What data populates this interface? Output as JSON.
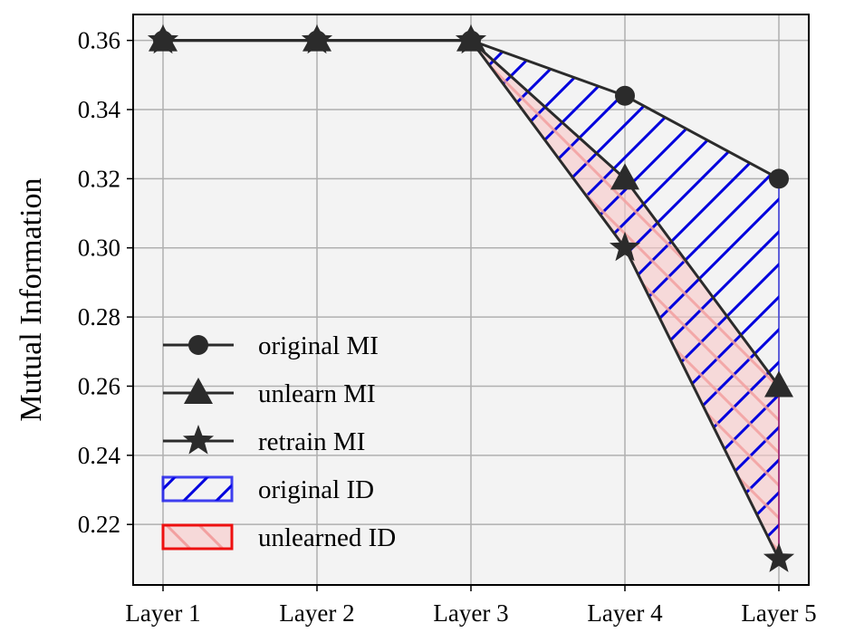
{
  "chart_data": {
    "type": "line",
    "title": "",
    "xlabel": "",
    "ylabel": "Mutual Information",
    "categories": [
      "Layer 1",
      "Layer 2",
      "Layer 3",
      "Layer 4",
      "Layer 5"
    ],
    "ylim": [
      0.2025,
      0.3675
    ],
    "yticks": [
      0.22,
      0.24,
      0.26,
      0.28,
      0.3,
      0.32,
      0.34,
      0.36
    ],
    "yticks_labels": [
      "0.22",
      "0.24",
      "0.26",
      "0.28",
      "0.30",
      "0.32",
      "0.34",
      "0.36"
    ],
    "grid": true,
    "legend_position": "lower-left",
    "series": [
      {
        "name": "original MI",
        "marker": "circle",
        "color": "#2b2b2b",
        "values": [
          0.36,
          0.36,
          0.36,
          0.344,
          0.32
        ]
      },
      {
        "name": "unlearn MI",
        "marker": "triangle",
        "color": "#2b2b2b",
        "values": [
          0.36,
          0.36,
          0.36,
          0.32,
          0.26
        ]
      },
      {
        "name": "retrain MI",
        "marker": "star",
        "color": "#2b2b2b",
        "values": [
          0.36,
          0.36,
          0.36,
          0.3,
          0.21
        ]
      }
    ],
    "fill_regions": [
      {
        "name": "original ID",
        "between": [
          "original MI",
          "retrain MI"
        ],
        "edge_color": "#1010ee",
        "hatch": "diagonal-forward"
      },
      {
        "name": "unlearned ID",
        "between": [
          "unlearn MI",
          "retrain MI"
        ],
        "edge_color": "#ee1010",
        "face_color": "#f8c8c8",
        "hatch": "diagonal-back"
      }
    ]
  }
}
